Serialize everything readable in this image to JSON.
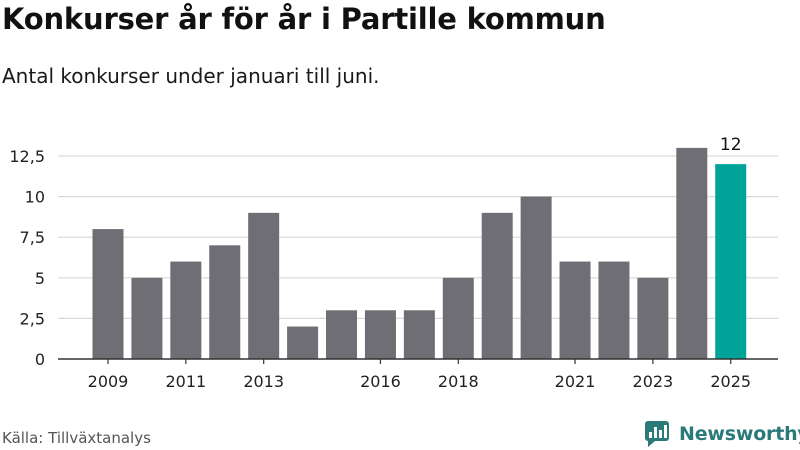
{
  "title": "Konkurser år för år i Partille kommun",
  "subtitle": "Antal konkurser under januari till juni.",
  "source": "Källa: Tillväxtanalys",
  "brand": {
    "name": "Newsworthy",
    "icon": "newsworthy-logo-icon"
  },
  "colors": {
    "bar": "#6f6e74",
    "highlight": "#00a398",
    "grid": "#d9d9d9",
    "axis": "#333333",
    "brand": "#2b7a7a"
  },
  "chart_data": {
    "type": "bar",
    "categories": [
      "2009",
      "2010",
      "2011",
      "2012",
      "2013",
      "2014",
      "2015",
      "2016",
      "2017",
      "2018",
      "2019",
      "2020",
      "2021",
      "2022",
      "2023",
      "2024",
      "2025"
    ],
    "values": [
      8,
      5,
      6,
      7,
      9,
      2,
      3,
      3,
      3,
      5,
      9,
      10,
      6,
      6,
      5,
      13,
      12
    ],
    "x_tick_labels": [
      "2009",
      "2011",
      "2013",
      "2016",
      "2018",
      "2021",
      "2023",
      "2025"
    ],
    "y_ticks": [
      0,
      2.5,
      5,
      7.5,
      10,
      12.5
    ],
    "y_tick_labels": [
      "0",
      "2,5",
      "5",
      "7,5",
      "10",
      "12,5"
    ],
    "ylim": [
      0,
      12.5
    ],
    "highlight_category": "2025",
    "data_labels": [
      {
        "category": "2025",
        "text": "12"
      }
    ],
    "title": "Konkurser år för år i Partille kommun",
    "subtitle": "Antal konkurser under januari till juni.",
    "xlabel": "",
    "ylabel": "",
    "grid": "horizontal"
  }
}
